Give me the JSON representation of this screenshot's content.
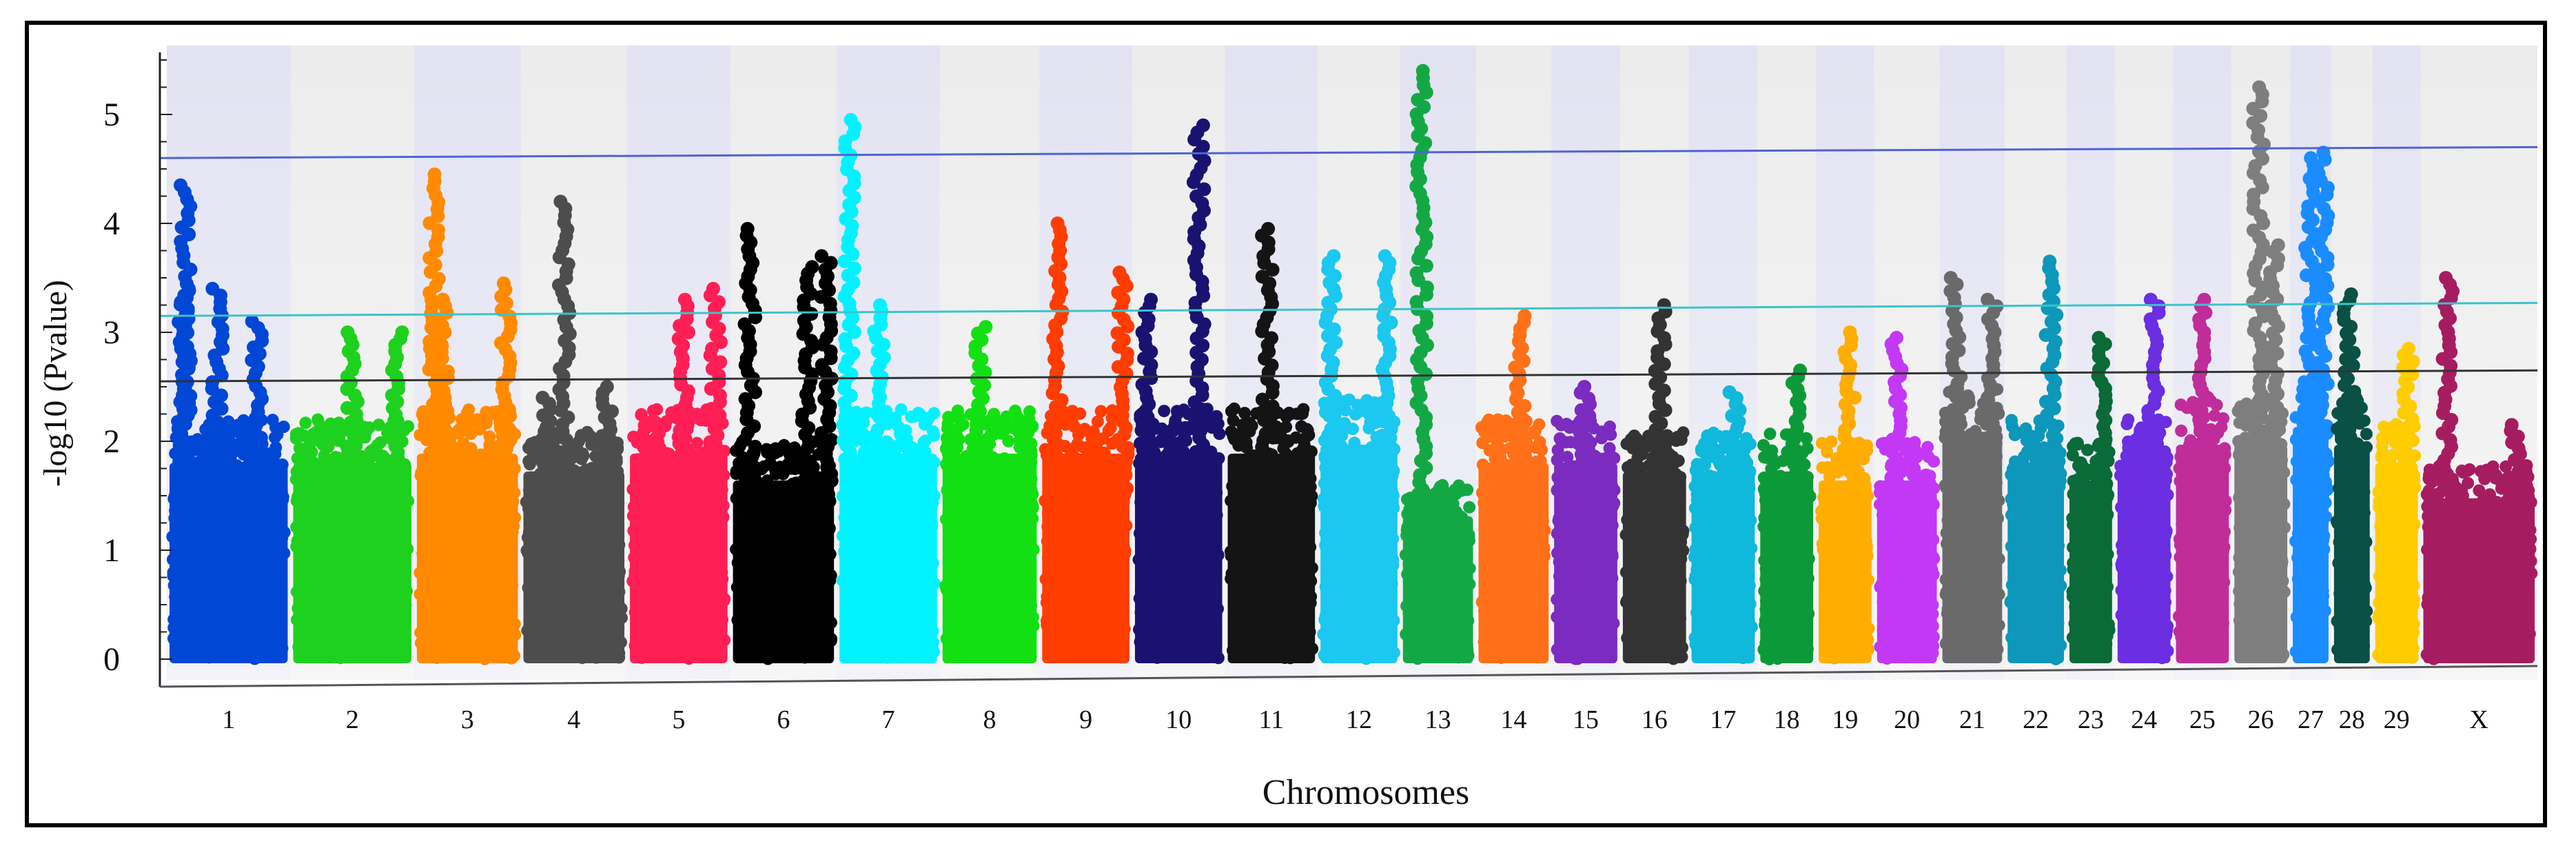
{
  "chart_data": {
    "type": "scatter",
    "subtype": "manhattan",
    "title": "",
    "xlabel": "Chromosomes",
    "ylabel": "-log10 (Pvalue)",
    "ylim": [
      0,
      5.5
    ],
    "yticks": [
      "0",
      "1",
      "2",
      "3",
      "4",
      "5"
    ],
    "grid": "alternating vertical bands",
    "thresholds": [
      {
        "name": "blue-line",
        "y_start": 4.6,
        "y_end": 4.7,
        "color": "#4e63d6"
      },
      {
        "name": "cyan-line",
        "y_start": 3.15,
        "y_end": 3.27,
        "color": "#3cc3c8"
      },
      {
        "name": "black-line",
        "y_start": 2.55,
        "y_end": 2.65,
        "color": "#333333"
      }
    ],
    "chromosomes": [
      {
        "label": "1",
        "color": "#0047d6",
        "top": 2.2,
        "peaks": [
          [
            0.1,
            3.4
          ],
          [
            0.12,
            4.35
          ],
          [
            0.4,
            3.4
          ],
          [
            0.75,
            3.1
          ]
        ]
      },
      {
        "label": "2",
        "color": "#1ed11e",
        "top": 2.2,
        "peaks": [
          [
            0.5,
            3.0
          ],
          [
            0.9,
            3.0
          ]
        ]
      },
      {
        "label": "3",
        "color": "#ff8a00",
        "top": 2.3,
        "peaks": [
          [
            0.15,
            4.45
          ],
          [
            0.25,
            3.3
          ],
          [
            0.9,
            3.45
          ]
        ]
      },
      {
        "label": "4",
        "color": "#4d4d4d",
        "top": 2.1,
        "peaks": [
          [
            0.4,
            4.2
          ],
          [
            0.2,
            2.4
          ],
          [
            0.85,
            2.5
          ]
        ]
      },
      {
        "label": "5",
        "color": "#ff1f55",
        "top": 2.3,
        "peaks": [
          [
            0.55,
            3.3
          ],
          [
            0.9,
            3.4
          ]
        ]
      },
      {
        "label": "6",
        "color": "#000000",
        "top": 2.0,
        "peaks": [
          [
            0.15,
            3.95
          ],
          [
            0.75,
            3.6
          ],
          [
            0.95,
            3.7
          ]
        ]
      },
      {
        "label": "7",
        "color": "#00f2ff",
        "top": 2.3,
        "peaks": [
          [
            0.08,
            4.95
          ],
          [
            0.4,
            3.25
          ]
        ]
      },
      {
        "label": "8",
        "color": "#12e012",
        "top": 2.3,
        "peaks": [
          [
            0.4,
            3.05
          ]
        ]
      },
      {
        "label": "9",
        "color": "#ff3d00",
        "top": 2.3,
        "peaks": [
          [
            0.15,
            4.0
          ],
          [
            0.95,
            3.55
          ]
        ]
      },
      {
        "label": "10",
        "color": "#1a1270",
        "top": 2.3,
        "peaks": [
          [
            0.1,
            3.3
          ],
          [
            0.75,
            4.9
          ]
        ]
      },
      {
        "label": "11",
        "color": "#141414",
        "top": 2.3,
        "peaks": [
          [
            0.45,
            3.95
          ]
        ]
      },
      {
        "label": "12",
        "color": "#1ac8f0",
        "top": 2.4,
        "peaks": [
          [
            0.1,
            3.7
          ],
          [
            0.9,
            3.7
          ]
        ]
      },
      {
        "label": "13",
        "color": "#14a845",
        "top": 1.6,
        "peaks": [
          [
            0.25,
            5.4
          ]
        ]
      },
      {
        "label": "14",
        "color": "#ff7018",
        "top": 2.2,
        "peaks": [
          [
            0.6,
            3.15
          ]
        ]
      },
      {
        "label": "15",
        "color": "#7b2bbf",
        "top": 2.2,
        "peaks": [
          [
            0.5,
            2.5
          ]
        ]
      },
      {
        "label": "16",
        "color": "#333333",
        "top": 2.1,
        "peaks": [
          [
            0.6,
            3.25
          ]
        ]
      },
      {
        "label": "17",
        "color": "#10b8db",
        "top": 2.1,
        "peaks": [
          [
            0.7,
            2.45
          ]
        ]
      },
      {
        "label": "18",
        "color": "#0c9a38",
        "top": 2.1,
        "peaks": [
          [
            0.7,
            2.65
          ]
        ]
      },
      {
        "label": "19",
        "color": "#ffad00",
        "top": 2.0,
        "peaks": [
          [
            0.6,
            3.0
          ]
        ]
      },
      {
        "label": "20",
        "color": "#c338f5",
        "top": 2.0,
        "peaks": [
          [
            0.3,
            2.95
          ]
        ]
      },
      {
        "label": "21",
        "color": "#6a6a6a",
        "top": 2.5,
        "peaks": [
          [
            0.2,
            3.5
          ],
          [
            0.85,
            3.3
          ]
        ]
      },
      {
        "label": "22",
        "color": "#0d97ba",
        "top": 2.2,
        "peaks": [
          [
            0.8,
            3.65
          ]
        ]
      },
      {
        "label": "23",
        "color": "#0a6a38",
        "top": 2.0,
        "peaks": [
          [
            0.8,
            2.95
          ]
        ]
      },
      {
        "label": "24",
        "color": "#6b2ee0",
        "top": 2.2,
        "peaks": [
          [
            0.7,
            3.3
          ]
        ]
      },
      {
        "label": "25",
        "color": "#c02d9a",
        "top": 2.4,
        "peaks": [
          [
            0.5,
            3.3
          ]
        ]
      },
      {
        "label": "26",
        "color": "#7e7e7e",
        "top": 2.4,
        "peaks": [
          [
            0.45,
            5.25
          ],
          [
            0.8,
            3.8
          ]
        ]
      },
      {
        "label": "27",
        "color": "#1a8cff",
        "top": 2.6,
        "peaks": [
          [
            0.5,
            4.6
          ],
          [
            0.9,
            4.65
          ]
        ]
      },
      {
        "label": "28",
        "color": "#0a5044",
        "top": 2.4,
        "peaks": [
          [
            0.4,
            3.35
          ]
        ]
      },
      {
        "label": "29",
        "color": "#ffcc00",
        "top": 2.2,
        "peaks": [
          [
            0.8,
            2.85
          ]
        ]
      },
      {
        "label": "X",
        "color": "#a61c61",
        "top": 1.8,
        "peaks": [
          [
            0.2,
            3.5
          ],
          [
            0.85,
            2.15
          ]
        ]
      }
    ]
  }
}
